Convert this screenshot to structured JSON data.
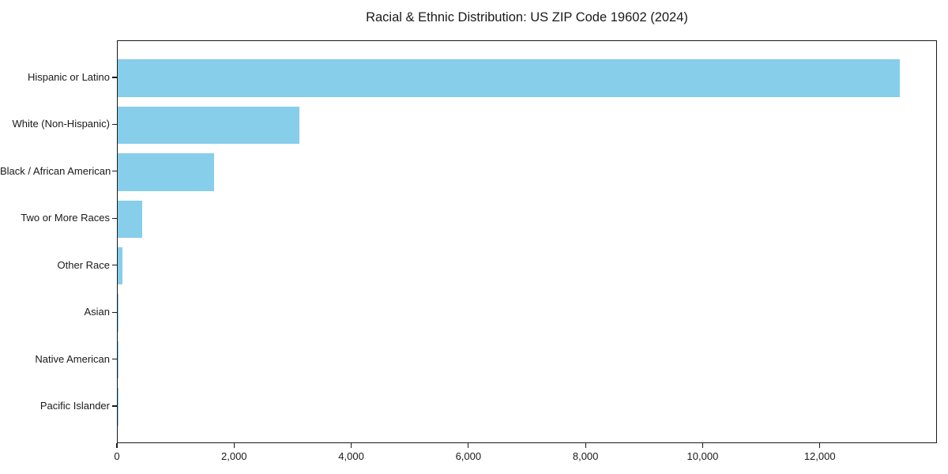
{
  "chart_data": {
    "type": "bar",
    "orientation": "horizontal",
    "title": "Racial & Ethnic Distribution: US ZIP Code 19602 (2024)",
    "categories": [
      "Hispanic or Latino",
      "White (Non-Hispanic)",
      "Black / African American",
      "Two or More Races",
      "Other Race",
      "Asian",
      "Native American",
      "Pacific Islander"
    ],
    "values": [
      13350,
      3100,
      1650,
      420,
      80,
      15,
      8,
      3
    ],
    "xlabel": "",
    "ylabel": "",
    "xlim": [
      0,
      14000
    ],
    "xticks": [
      0,
      2000,
      4000,
      6000,
      8000,
      10000,
      12000
    ],
    "xtick_labels": [
      "0",
      "2,000",
      "4,000",
      "6,000",
      "8,000",
      "10,000",
      "12,000"
    ],
    "bar_color": "#87CEEB",
    "axis_color": "#1a1a1a",
    "text_color": "#1a1a1a",
    "background_color": "#ffffff",
    "grid": false,
    "legend_position": "none"
  }
}
